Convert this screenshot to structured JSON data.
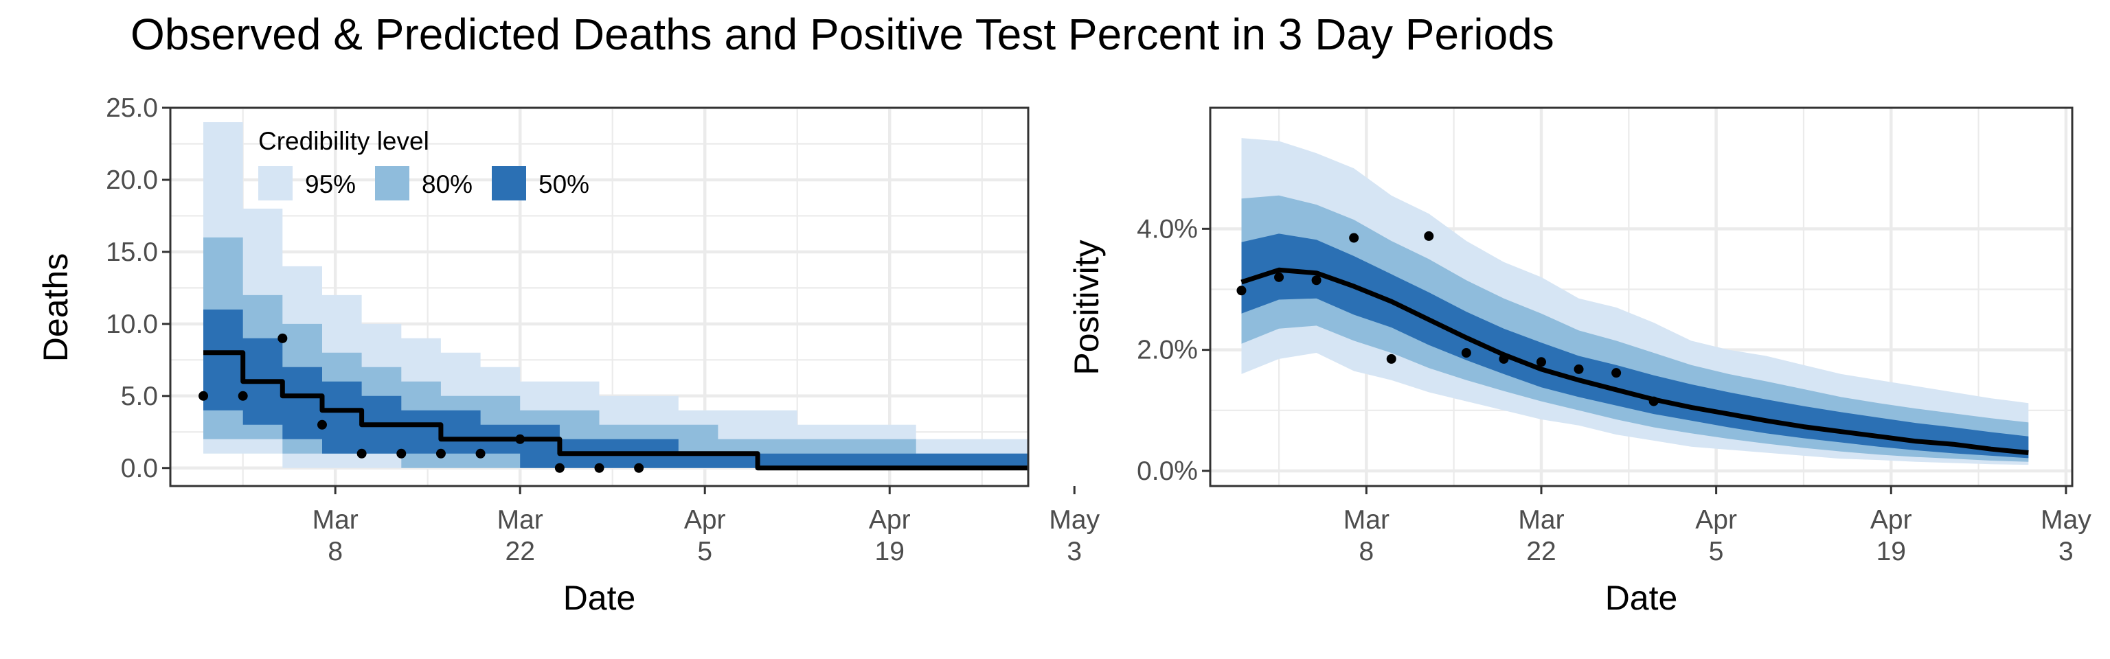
{
  "title": "Observed & Predicted Deaths and Positive Test Percent in 3 Day Periods",
  "colors": {
    "band95": "#d6e5f4",
    "band80": "#8fbcdc",
    "band50": "#2b70b4",
    "line": "#000000",
    "grid": "#ebebeb",
    "axis": "#333333",
    "text": "#000000",
    "tick_text": "#4d4d4d"
  },
  "legend": {
    "title": "Credibility level",
    "items": [
      {
        "label": "95%",
        "color": "#d6e5f4"
      },
      {
        "label": "80%",
        "color": "#8fbcdc"
      },
      {
        "label": "50%",
        "color": "#2b70b4"
      }
    ],
    "placement": "top-left inside left panel"
  },
  "chart_data": [
    {
      "type": "area",
      "step": true,
      "xlabel": "Date",
      "ylabel": "Deaths",
      "xlim": [
        -4.5,
        60.5
      ],
      "ylim": [
        -1.25,
        25.0
      ],
      "x_ticks": [
        {
          "value": 8,
          "label_top": "Mar",
          "label_bottom": "8"
        },
        {
          "value": 22,
          "label_top": "Mar",
          "label_bottom": "22"
        },
        {
          "value": 36,
          "label_top": "Apr",
          "label_bottom": "5"
        },
        {
          "value": 50,
          "label_top": "Apr",
          "label_bottom": "19"
        },
        {
          "value": 64,
          "label_top": "May",
          "label_bottom": "3"
        }
      ],
      "y_ticks": [
        {
          "value": 0,
          "label": "0.0"
        },
        {
          "value": 5,
          "label": "5.0"
        },
        {
          "value": 10,
          "label": "10.0"
        },
        {
          "value": 15,
          "label": "15.0"
        },
        {
          "value": 20,
          "label": "20.0"
        },
        {
          "value": 25,
          "label": "25.0"
        }
      ],
      "x": [
        "Feb 26",
        "Mar 1",
        "Mar 4",
        "Mar 7",
        "Mar 10",
        "Mar 13",
        "Mar 16",
        "Mar 19",
        "Mar 22",
        "Mar 25",
        "Mar 28",
        "Mar 31",
        "Apr 3",
        "Apr 6",
        "Apr 9",
        "Apr 12",
        "Apr 15",
        "Apr 18",
        "Apr 21",
        "Apr 24",
        "Apr 27",
        "Apr 30"
      ],
      "x_day": [
        -2,
        1,
        4,
        7,
        10,
        13,
        16,
        19,
        22,
        25,
        28,
        31,
        34,
        37,
        40,
        43,
        46,
        49,
        52,
        55,
        58,
        61
      ],
      "median": [
        8,
        6,
        5,
        4,
        3,
        3,
        2,
        2,
        2,
        1,
        1,
        1,
        1,
        1,
        0,
        0,
        0,
        0,
        0,
        0,
        0,
        0
      ],
      "lo95": [
        1,
        1,
        0,
        0,
        0,
        0,
        0,
        0,
        0,
        0,
        0,
        0,
        0,
        0,
        0,
        0,
        0,
        0,
        0,
        0,
        0,
        0
      ],
      "hi95": [
        24,
        18,
        14,
        12,
        10,
        9,
        8,
        7,
        6,
        6,
        5,
        5,
        4,
        4,
        4,
        3,
        3,
        3,
        2,
        2,
        2,
        2
      ],
      "lo80": [
        2,
        2,
        1,
        1,
        1,
        0,
        0,
        0,
        0,
        0,
        0,
        0,
        0,
        0,
        0,
        0,
        0,
        0,
        0,
        0,
        0,
        0
      ],
      "hi80": [
        16,
        12,
        10,
        8,
        7,
        6,
        5,
        5,
        4,
        4,
        3,
        3,
        3,
        2,
        2,
        2,
        2,
        2,
        1,
        1,
        1,
        1
      ],
      "lo50": [
        4,
        3,
        2,
        1,
        1,
        1,
        1,
        1,
        0,
        0,
        0,
        0,
        0,
        0,
        0,
        0,
        0,
        0,
        0,
        0,
        0,
        0
      ],
      "hi50": [
        11,
        9,
        7,
        6,
        5,
        4,
        4,
        3,
        3,
        2,
        2,
        2,
        1,
        1,
        1,
        1,
        1,
        1,
        1,
        1,
        1,
        0
      ],
      "observed_x": [
        -2,
        1,
        4,
        7,
        10,
        13,
        16,
        19,
        22,
        25,
        28,
        31
      ],
      "observed": [
        5,
        5,
        9,
        3,
        1,
        1,
        1,
        1,
        2,
        0,
        0,
        0
      ]
    },
    {
      "type": "area",
      "step": false,
      "xlabel": "Date",
      "ylabel": "Positivity",
      "xlim": [
        -4.5,
        64.5
      ],
      "ylim": [
        -0.0025,
        0.06
      ],
      "x_ticks": [
        {
          "value": 8,
          "label_top": "Mar",
          "label_bottom": "8"
        },
        {
          "value": 22,
          "label_top": "Mar",
          "label_bottom": "22"
        },
        {
          "value": 36,
          "label_top": "Apr",
          "label_bottom": "5"
        },
        {
          "value": 50,
          "label_top": "Apr",
          "label_bottom": "19"
        },
        {
          "value": 64,
          "label_top": "May",
          "label_bottom": "3"
        }
      ],
      "y_ticks": [
        {
          "value": 0.0,
          "label": "0.0%"
        },
        {
          "value": 0.02,
          "label": "2.0%"
        },
        {
          "value": 0.04,
          "label": "4.0%"
        }
      ],
      "x": [
        "Feb 26",
        "Mar 1",
        "Mar 4",
        "Mar 7",
        "Mar 10",
        "Mar 13",
        "Mar 16",
        "Mar 19",
        "Mar 22",
        "Mar 25",
        "Mar 28",
        "Mar 31",
        "Apr 3",
        "Apr 6",
        "Apr 9",
        "Apr 12",
        "Apr 15",
        "Apr 18",
        "Apr 21",
        "Apr 24",
        "Apr 27",
        "Apr 30"
      ],
      "x_day": [
        -2,
        1,
        4,
        7,
        10,
        13,
        16,
        19,
        22,
        25,
        28,
        31,
        34,
        37,
        40,
        43,
        46,
        49,
        52,
        55,
        58,
        61
      ],
      "median": [
        0.0312,
        0.0332,
        0.0327,
        0.0305,
        0.028,
        0.025,
        0.022,
        0.0192,
        0.0168,
        0.015,
        0.0134,
        0.0118,
        0.0105,
        0.0094,
        0.0083,
        0.0073,
        0.0065,
        0.0057,
        0.0049,
        0.0044,
        0.0036,
        0.003
      ],
      "lo95": [
        0.016,
        0.0185,
        0.0195,
        0.0165,
        0.015,
        0.013,
        0.0115,
        0.01,
        0.0085,
        0.0075,
        0.006,
        0.005,
        0.004,
        0.0035,
        0.003,
        0.0025,
        0.002,
        0.0018,
        0.0015,
        0.0013,
        0.0011,
        0.001
      ],
      "hi95": [
        0.055,
        0.0545,
        0.0525,
        0.05,
        0.0455,
        0.0425,
        0.038,
        0.0345,
        0.032,
        0.0285,
        0.027,
        0.0245,
        0.0215,
        0.02,
        0.019,
        0.0175,
        0.016,
        0.015,
        0.014,
        0.013,
        0.012,
        0.0112
      ],
      "lo80": [
        0.021,
        0.0235,
        0.024,
        0.0215,
        0.0195,
        0.017,
        0.015,
        0.0132,
        0.0115,
        0.01,
        0.0085,
        0.0072,
        0.0062,
        0.0053,
        0.0045,
        0.0038,
        0.0032,
        0.0027,
        0.0023,
        0.002,
        0.0017,
        0.0015
      ],
      "hi80": [
        0.045,
        0.0455,
        0.044,
        0.0415,
        0.038,
        0.035,
        0.0315,
        0.0285,
        0.026,
        0.0232,
        0.0215,
        0.0195,
        0.0175,
        0.016,
        0.0148,
        0.0135,
        0.0122,
        0.0112,
        0.0103,
        0.0095,
        0.0087,
        0.008
      ],
      "lo50": [
        0.026,
        0.0283,
        0.0285,
        0.0258,
        0.0237,
        0.0208,
        0.0183,
        0.016,
        0.0138,
        0.0122,
        0.0108,
        0.0094,
        0.0083,
        0.0072,
        0.0062,
        0.0054,
        0.0047,
        0.004,
        0.0034,
        0.0029,
        0.0025,
        0.0021
      ],
      "hi50": [
        0.0378,
        0.0392,
        0.0382,
        0.0355,
        0.0325,
        0.0295,
        0.0263,
        0.0235,
        0.0212,
        0.019,
        0.0175,
        0.0158,
        0.0143,
        0.013,
        0.0118,
        0.0107,
        0.0097,
        0.0088,
        0.0079,
        0.0072,
        0.0064,
        0.0057
      ],
      "observed_x": [
        -2,
        1,
        4,
        7,
        10,
        13,
        16,
        19,
        22,
        25,
        28,
        31
      ],
      "observed": [
        0.0298,
        0.032,
        0.0315,
        0.0385,
        0.0185,
        0.0388,
        0.0195,
        0.0185,
        0.018,
        0.0168,
        0.0162,
        0.0115
      ]
    }
  ]
}
